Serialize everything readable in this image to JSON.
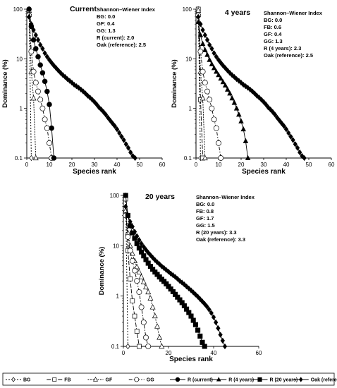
{
  "chart_data": [
    {
      "type": "line",
      "title": "Current",
      "xlabel": "Species rank",
      "ylabel": "Dominance (%)",
      "xlim": [
        0,
        60
      ],
      "xticks": [
        "0",
        "10",
        "20",
        "30",
        "40",
        "50",
        "60"
      ],
      "yscale": "log",
      "ylim": [
        0.1,
        100
      ],
      "yticks": [
        "0.1",
        "1",
        "10",
        "100"
      ],
      "index_title": "Shannon–Wiener Index",
      "index_lines": [
        "BG: 0.0",
        "GF: 0.4",
        "GG: 1.3",
        "R (current): 2.0",
        "Oak (reference): 2.5"
      ],
      "series": [
        {
          "name": "BG",
          "x": [
            1,
            2
          ],
          "y": [
            100,
            0.1
          ]
        },
        {
          "name": "GF",
          "x": [
            1,
            2,
            3,
            4
          ],
          "y": [
            94,
            5.5,
            1.6,
            0.1
          ]
        },
        {
          "name": "GG",
          "x": [
            1,
            2,
            3,
            4,
            5,
            6,
            7,
            8,
            9,
            10,
            11
          ],
          "y": [
            75,
            14,
            5.5,
            3.3,
            2.2,
            1.5,
            1.0,
            0.6,
            0.4,
            0.2,
            0.1
          ]
        },
        {
          "name": "R (current)",
          "x": [
            1,
            2,
            3,
            4,
            5,
            6,
            7,
            8,
            9,
            10,
            11,
            12
          ],
          "y": [
            100,
            45,
            24,
            16,
            11,
            7.5,
            5.2,
            3.5,
            2.2,
            1.2,
            0.4,
            0.1
          ]
        },
        {
          "name": "Oak (reference)",
          "x": [
            1,
            2,
            3,
            4,
            5,
            6,
            7,
            8,
            9,
            10,
            11,
            12,
            13,
            14,
            15,
            16,
            17,
            18,
            19,
            20,
            21,
            22,
            23,
            24,
            25,
            26,
            27,
            28,
            29,
            30,
            31,
            32,
            33,
            34,
            35,
            36,
            37,
            38,
            39,
            40,
            41,
            42,
            43,
            44,
            45,
            46,
            47,
            48
          ],
          "y": [
            70,
            50,
            38,
            30,
            24,
            19,
            16,
            13,
            11,
            9.5,
            8.3,
            7.3,
            6.5,
            5.8,
            5.2,
            4.7,
            4.3,
            3.9,
            3.6,
            3.3,
            3.0,
            2.8,
            2.6,
            2.4,
            2.2,
            2.0,
            1.8,
            1.65,
            1.5,
            1.35,
            1.2,
            1.05,
            0.95,
            0.85,
            0.75,
            0.65,
            0.57,
            0.5,
            0.44,
            0.38,
            0.32,
            0.27,
            0.23,
            0.19,
            0.16,
            0.13,
            0.11,
            0.1
          ]
        }
      ]
    },
    {
      "type": "line",
      "title": "4 years",
      "xlabel": "Species rank",
      "ylabel": "Dominance (%)",
      "xlim": [
        0,
        60
      ],
      "xticks": [
        "0",
        "10",
        "20",
        "30",
        "40",
        "50",
        "60"
      ],
      "yscale": "log",
      "ylim": [
        0.1,
        100
      ],
      "yticks": [
        "0.1",
        "1",
        "10",
        "100"
      ],
      "index_title": "Shannon–Wiener Index",
      "index_lines": [
        "BG: 0.0",
        "FB: 0.6",
        "GF: 0.4",
        "GG: 1.3",
        "R (4 years): 2.3",
        "Oak (reference): 2.5"
      ],
      "series": [
        {
          "name": "BG",
          "x": [
            1,
            2
          ],
          "y": [
            100,
            0.1
          ]
        },
        {
          "name": "FB",
          "x": [
            1,
            2,
            3
          ],
          "y": [
            100,
            1.5,
            0.1
          ]
        },
        {
          "name": "GF",
          "x": [
            1,
            2,
            3,
            4
          ],
          "y": [
            94,
            5.5,
            1.6,
            0.1
          ]
        },
        {
          "name": "GG",
          "x": [
            1,
            2,
            3,
            4,
            5,
            6,
            7,
            8,
            9,
            10,
            11
          ],
          "y": [
            75,
            14,
            5.5,
            3.3,
            2.2,
            1.5,
            1.0,
            0.6,
            0.4,
            0.2,
            0.1
          ]
        },
        {
          "name": "R (4 years)",
          "x": [
            1,
            2,
            3,
            4,
            5,
            6,
            7,
            8,
            9,
            10,
            11,
            12,
            13,
            14,
            15,
            16,
            17,
            18,
            19,
            20,
            21,
            22,
            23
          ],
          "y": [
            55,
            30,
            20,
            15,
            12,
            9.5,
            7.8,
            6.5,
            5.5,
            4.7,
            4.0,
            3.4,
            2.9,
            2.4,
            2.0,
            1.6,
            1.3,
            1.0,
            0.75,
            0.55,
            0.38,
            0.22,
            0.1
          ]
        },
        {
          "name": "Oak (reference)",
          "x": [
            1,
            2,
            3,
            4,
            5,
            6,
            7,
            8,
            9,
            10,
            11,
            12,
            13,
            14,
            15,
            16,
            17,
            18,
            19,
            20,
            21,
            22,
            23,
            24,
            25,
            26,
            27,
            28,
            29,
            30,
            31,
            32,
            33,
            34,
            35,
            36,
            37,
            38,
            39,
            40,
            41,
            42,
            43,
            44,
            45,
            46,
            47,
            48
          ],
          "y": [
            70,
            50,
            38,
            30,
            24,
            19,
            16,
            13,
            11,
            9.5,
            8.3,
            7.3,
            6.5,
            5.8,
            5.2,
            4.7,
            4.3,
            3.9,
            3.6,
            3.3,
            3.0,
            2.8,
            2.6,
            2.4,
            2.2,
            2.0,
            1.8,
            1.65,
            1.5,
            1.35,
            1.2,
            1.05,
            0.95,
            0.85,
            0.75,
            0.65,
            0.57,
            0.5,
            0.44,
            0.38,
            0.32,
            0.27,
            0.23,
            0.19,
            0.16,
            0.13,
            0.11,
            0.1
          ]
        }
      ]
    },
    {
      "type": "line",
      "title": "20 years",
      "xlabel": "Species rank",
      "ylabel": "Dominance (%)",
      "xlim": [
        0,
        60
      ],
      "xticks": [
        "0",
        "20",
        "40",
        "60"
      ],
      "yscale": "log",
      "ylim": [
        0.1,
        100
      ],
      "yticks": [
        "0.1",
        "1",
        "10",
        "100"
      ],
      "index_title": "Shannon–Wiener Index",
      "index_lines": [
        "BG: 0.0",
        "FB: 0.8",
        "GF: 1.7",
        "GG: 1.5",
        "R (20 years): 3.3",
        "Oak (reference): 3.3"
      ],
      "series": [
        {
          "name": "BG",
          "x": [
            1,
            2
          ],
          "y": [
            100,
            0.1
          ]
        },
        {
          "name": "FB",
          "x": [
            1,
            2,
            3,
            4,
            5,
            6,
            7
          ],
          "y": [
            85,
            8,
            2.2,
            0.8,
            0.4,
            0.2,
            0.1
          ]
        },
        {
          "name": "GF",
          "x": [
            1,
            2,
            3,
            4,
            5,
            6,
            7,
            8,
            9,
            10,
            11,
            12,
            13,
            14,
            15,
            16,
            17
          ],
          "y": [
            50,
            18,
            10,
            7,
            5,
            3.8,
            3.0,
            2.4,
            1.9,
            1.5,
            1.2,
            0.9,
            0.6,
            0.4,
            0.25,
            0.15,
            0.1
          ]
        },
        {
          "name": "GG",
          "x": [
            1,
            2,
            3,
            4,
            5,
            6,
            7,
            8,
            9,
            10,
            11
          ],
          "y": [
            40,
            15,
            8,
            5,
            3.2,
            2.0,
            1.2,
            0.6,
            0.3,
            0.15,
            0.1
          ]
        },
        {
          "name": "R (20 years)",
          "x": [
            1,
            2,
            3,
            4,
            5,
            6,
            7,
            8,
            9,
            10,
            11,
            12,
            13,
            14,
            15,
            16,
            17,
            18,
            19,
            20,
            21,
            22,
            23,
            24,
            25,
            26,
            27,
            28,
            29,
            30,
            31,
            32,
            33,
            34,
            35,
            36
          ],
          "y": [
            100,
            40,
            25,
            18,
            14,
            11,
            9,
            7.5,
            6.3,
            5.3,
            4.5,
            3.9,
            3.4,
            3.0,
            2.7,
            2.4,
            2.15,
            1.95,
            1.75,
            1.55,
            1.38,
            1.22,
            1.08,
            0.95,
            0.84,
            0.74,
            0.64,
            0.55,
            0.47,
            0.4,
            0.33,
            0.27,
            0.21,
            0.16,
            0.12,
            0.1
          ]
        },
        {
          "name": "Oak (reference)",
          "x": [
            1,
            2,
            3,
            4,
            5,
            6,
            7,
            8,
            9,
            10,
            11,
            12,
            13,
            14,
            15,
            16,
            17,
            18,
            19,
            20,
            21,
            22,
            23,
            24,
            25,
            26,
            27,
            28,
            29,
            30,
            31,
            32,
            33,
            34,
            35,
            36,
            37,
            38,
            39,
            40,
            41,
            42,
            43,
            44,
            45
          ],
          "y": [
            60,
            40,
            30,
            24,
            19,
            15.5,
            13,
            11,
            9.5,
            8.3,
            7.3,
            6.5,
            5.8,
            5.2,
            4.7,
            4.3,
            3.9,
            3.6,
            3.3,
            3.05,
            2.8,
            2.6,
            2.4,
            2.2,
            2.0,
            1.85,
            1.7,
            1.55,
            1.42,
            1.3,
            1.18,
            1.07,
            0.97,
            0.87,
            0.78,
            0.7,
            0.62,
            0.54,
            0.46,
            0.38,
            0.3,
            0.23,
            0.17,
            0.13,
            0.1
          ]
        }
      ]
    }
  ],
  "legend": {
    "entries": [
      "BG",
      "FB",
      "GF",
      "GG",
      "R (current)",
      "R (4 years)",
      "R (20 years)",
      "Oak (reference)"
    ]
  }
}
